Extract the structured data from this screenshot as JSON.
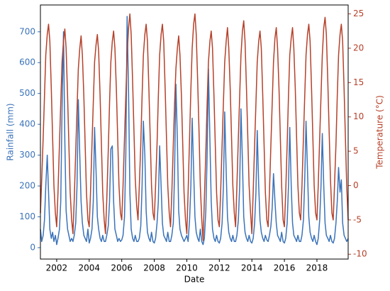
{
  "chart_data": {
    "type": "line",
    "x_label": "Date",
    "y_label": "Rainfall (mm)",
    "y2_label": "Temperature (°C)",
    "xlim": [
      2001.0,
      2019.92
    ],
    "xticks": [
      2002,
      2004,
      2006,
      2008,
      2010,
      2012,
      2014,
      2016,
      2018
    ],
    "ylim": [
      -37,
      787
    ],
    "yticks": [
      0,
      100,
      200,
      300,
      400,
      500,
      600,
      700
    ],
    "y2lim": [
      -10.7,
      26.3
    ],
    "y2ticks": [
      -10,
      -5,
      0,
      5,
      10,
      15,
      20,
      25
    ],
    "y_color": "#3b73b9",
    "y2_color": "#b5412a",
    "x": [
      2001.0,
      2001.08,
      2001.17,
      2001.25,
      2001.33,
      2001.42,
      2001.5,
      2001.58,
      2001.67,
      2001.75,
      2001.83,
      2001.92,
      2002.0,
      2002.08,
      2002.17,
      2002.25,
      2002.33,
      2002.42,
      2002.5,
      2002.58,
      2002.67,
      2002.75,
      2002.83,
      2002.92,
      2003.0,
      2003.08,
      2003.17,
      2003.25,
      2003.33,
      2003.42,
      2003.5,
      2003.58,
      2003.67,
      2003.75,
      2003.83,
      2003.92,
      2004.0,
      2004.08,
      2004.17,
      2004.25,
      2004.33,
      2004.42,
      2004.5,
      2004.58,
      2004.67,
      2004.75,
      2004.83,
      2004.92,
      2005.0,
      2005.08,
      2005.17,
      2005.25,
      2005.33,
      2005.42,
      2005.5,
      2005.58,
      2005.67,
      2005.75,
      2005.83,
      2005.92,
      2006.0,
      2006.08,
      2006.17,
      2006.25,
      2006.33,
      2006.42,
      2006.5,
      2006.58,
      2006.67,
      2006.75,
      2006.83,
      2006.92,
      2007.0,
      2007.08,
      2007.17,
      2007.25,
      2007.33,
      2007.42,
      2007.5,
      2007.58,
      2007.67,
      2007.75,
      2007.83,
      2007.92,
      2008.0,
      2008.08,
      2008.17,
      2008.25,
      2008.33,
      2008.42,
      2008.5,
      2008.58,
      2008.67,
      2008.75,
      2008.83,
      2008.92,
      2009.0,
      2009.08,
      2009.17,
      2009.25,
      2009.33,
      2009.42,
      2009.5,
      2009.58,
      2009.67,
      2009.75,
      2009.83,
      2009.92,
      2010.0,
      2010.08,
      2010.17,
      2010.25,
      2010.33,
      2010.42,
      2010.5,
      2010.58,
      2010.67,
      2010.75,
      2010.83,
      2010.92,
      2011.0,
      2011.08,
      2011.17,
      2011.25,
      2011.33,
      2011.42,
      2011.5,
      2011.58,
      2011.67,
      2011.75,
      2011.83,
      2011.92,
      2012.0,
      2012.08,
      2012.17,
      2012.25,
      2012.33,
      2012.42,
      2012.5,
      2012.58,
      2012.67,
      2012.75,
      2012.83,
      2012.92,
      2013.0,
      2013.08,
      2013.17,
      2013.25,
      2013.33,
      2013.42,
      2013.5,
      2013.58,
      2013.67,
      2013.75,
      2013.83,
      2013.92,
      2014.0,
      2014.08,
      2014.17,
      2014.25,
      2014.33,
      2014.42,
      2014.5,
      2014.58,
      2014.67,
      2014.75,
      2014.83,
      2014.92,
      2015.0,
      2015.08,
      2015.17,
      2015.25,
      2015.33,
      2015.42,
      2015.5,
      2015.58,
      2015.67,
      2015.75,
      2015.83,
      2015.92,
      2016.0,
      2016.08,
      2016.17,
      2016.25,
      2016.33,
      2016.42,
      2016.5,
      2016.58,
      2016.67,
      2016.75,
      2016.83,
      2016.92,
      2017.0,
      2017.08,
      2017.17,
      2017.25,
      2017.33,
      2017.42,
      2017.5,
      2017.58,
      2017.67,
      2017.75,
      2017.83,
      2017.92,
      2018.0,
      2018.08,
      2018.17,
      2018.25,
      2018.33,
      2018.42,
      2018.5,
      2018.58,
      2018.67,
      2018.75,
      2018.83,
      2018.92,
      2019.0,
      2019.08,
      2019.17,
      2019.25,
      2019.33,
      2019.42,
      2019.5,
      2019.58,
      2019.67,
      2019.75,
      2019.83,
      2019.92
    ],
    "series": [
      {
        "color": "#3b73b9",
        "axis": "y",
        "values": [
          60,
          20,
          40,
          90,
          200,
          300,
          180,
          60,
          30,
          50,
          20,
          40,
          10,
          30,
          60,
          150,
          450,
          700,
          350,
          120,
          60,
          40,
          20,
          30,
          20,
          40,
          80,
          200,
          480,
          300,
          150,
          80,
          40,
          30,
          20,
          60,
          15,
          30,
          60,
          150,
          390,
          250,
          100,
          60,
          30,
          20,
          40,
          20,
          20,
          40,
          70,
          150,
          320,
          330,
          150,
          60,
          40,
          20,
          30,
          20,
          25,
          40,
          100,
          300,
          750,
          500,
          180,
          60,
          30,
          20,
          40,
          20,
          20,
          30,
          70,
          200,
          410,
          300,
          120,
          50,
          30,
          20,
          50,
          20,
          15,
          30,
          80,
          150,
          330,
          200,
          80,
          40,
          30,
          20,
          50,
          20,
          20,
          40,
          80,
          250,
          530,
          350,
          120,
          60,
          40,
          30,
          20,
          30,
          40,
          20,
          90,
          200,
          420,
          250,
          100,
          50,
          30,
          20,
          60,
          20,
          10,
          30,
          120,
          300,
          580,
          350,
          150,
          60,
          30,
          20,
          40,
          20,
          15,
          30,
          80,
          200,
          440,
          250,
          100,
          50,
          30,
          20,
          40,
          20,
          20,
          40,
          90,
          200,
          450,
          280,
          100,
          50,
          30,
          20,
          40,
          20,
          15,
          30,
          80,
          180,
          380,
          200,
          90,
          50,
          30,
          20,
          40,
          25,
          20,
          40,
          70,
          130,
          240,
          150,
          80,
          40,
          30,
          20,
          50,
          20,
          15,
          30,
          80,
          200,
          390,
          200,
          80,
          40,
          30,
          20,
          40,
          20,
          20,
          40,
          90,
          220,
          410,
          250,
          100,
          50,
          30,
          20,
          40,
          20,
          10,
          30,
          90,
          200,
          370,
          200,
          80,
          40,
          30,
          20,
          40,
          20,
          15,
          30,
          80,
          150,
          260,
          180,
          220,
          80,
          40,
          30,
          20,
          30
        ]
      },
      {
        "color": "#b5412a",
        "axis": "y2",
        "values": [
          -4,
          1,
          7,
          13,
          19,
          22,
          23.5,
          21,
          14,
          7,
          0,
          -4,
          -6,
          -1,
          6,
          12,
          18,
          21,
          22.8,
          20,
          13,
          6,
          -1,
          -5,
          -7,
          -2,
          5,
          11,
          17,
          20,
          21.8,
          19,
          13,
          6,
          -1,
          -5,
          -6,
          -1,
          6,
          12,
          18,
          20.5,
          22,
          19.5,
          13,
          6,
          -1,
          -5,
          -7,
          -2,
          5,
          12,
          18,
          21,
          22.5,
          20,
          14,
          7,
          0,
          -4,
          -5,
          0,
          7,
          13,
          19,
          23,
          25,
          22,
          15,
          8,
          1,
          -3,
          -5,
          0,
          6,
          13,
          19,
          22,
          23.5,
          21,
          14,
          7,
          0,
          -4,
          -5,
          0,
          6,
          13,
          19,
          22,
          23.5,
          21,
          14,
          7,
          0,
          -4,
          -6,
          -1,
          6,
          12,
          17,
          20,
          21.8,
          19,
          13,
          6,
          -1,
          -5,
          -7,
          -1,
          7,
          14,
          20,
          23.5,
          25,
          22,
          15,
          8,
          0,
          -5,
          -8,
          -2,
          5,
          12,
          18,
          21,
          22.5,
          20,
          13,
          6,
          -1,
          -5,
          -6,
          -1,
          6,
          12,
          18,
          21,
          23,
          20,
          14,
          7,
          0,
          -4,
          -6,
          0,
          7,
          13,
          19,
          22.5,
          24,
          21,
          14,
          7,
          0,
          -4,
          -7,
          -1,
          6,
          12,
          18,
          21,
          22.5,
          20,
          13,
          6,
          -1,
          -5,
          -6,
          -1,
          6,
          12,
          18,
          21.5,
          23,
          20,
          14,
          7,
          0,
          -5,
          -6,
          -1,
          6,
          13,
          19,
          21.5,
          23,
          20,
          14,
          7,
          0,
          -4,
          -5,
          0,
          7,
          13,
          19,
          22,
          23.5,
          21,
          14,
          7,
          0,
          -4,
          -5,
          0,
          7,
          13,
          19,
          23,
          24.5,
          22,
          15,
          8,
          1,
          -4,
          -5,
          0,
          6,
          13,
          19,
          22,
          23.5,
          21,
          14,
          7,
          0,
          -5
        ]
      }
    ]
  }
}
